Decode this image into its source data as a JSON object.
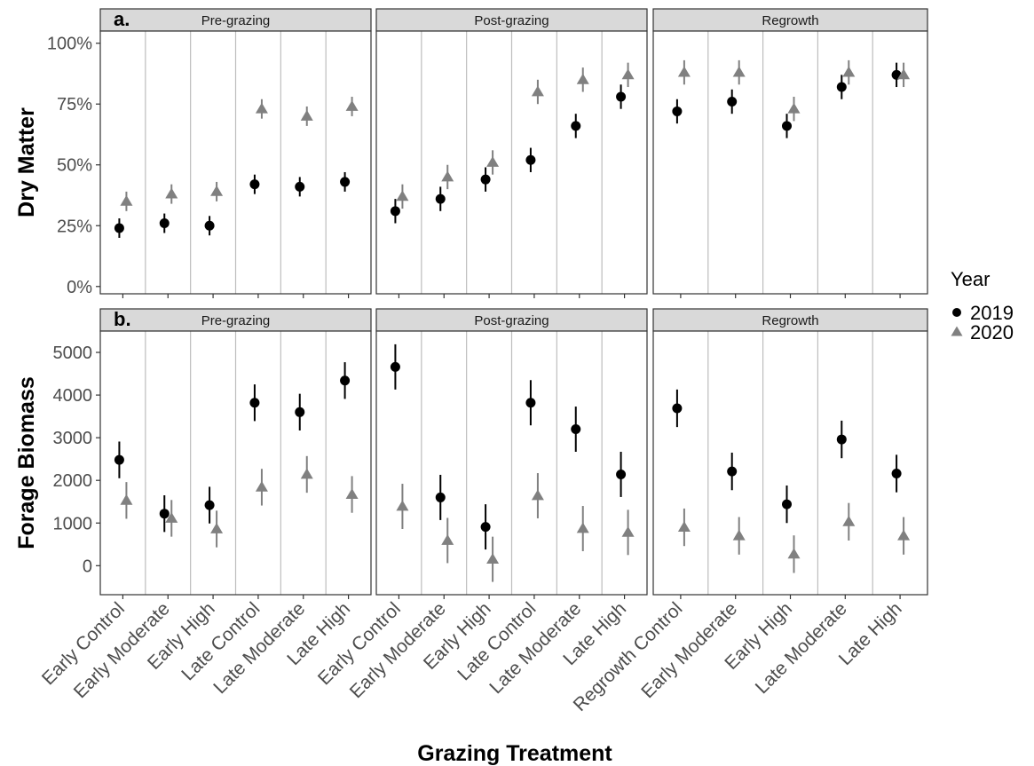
{
  "chart_data": {
    "type": "scatter",
    "x_label": "Grazing Treatment",
    "legend": {
      "title": "Year",
      "position": "right",
      "entries": [
        {
          "label": "2019",
          "color": "#000000",
          "shape": "circle"
        },
        {
          "label": "2020",
          "color": "#808080",
          "shape": "triangle"
        }
      ]
    },
    "panels": [
      {
        "tag": "a.",
        "ylabel": "Dry Matter",
        "ylim": [
          -3,
          105
        ],
        "yticks": [
          0,
          25,
          50,
          75,
          100
        ],
        "ytick_labels": [
          "0%",
          "25%",
          "50%",
          "75%",
          "100%"
        ],
        "facets": [
          {
            "title": "Pre-grazing",
            "categories": [
              "Early Control",
              "Early Moderate",
              "Early High",
              "Late Control",
              "Late Moderate",
              "Late High"
            ],
            "series": [
              {
                "name": "2019",
                "values": [
                  24,
                  26,
                  25,
                  42,
                  41,
                  43
                ],
                "errors": [
                  4,
                  4,
                  4,
                  4,
                  4,
                  4
                ]
              },
              {
                "name": "2020",
                "values": [
                  35,
                  38,
                  39,
                  73,
                  70,
                  74
                ],
                "errors": [
                  4,
                  4,
                  4,
                  4,
                  4,
                  4
                ]
              }
            ]
          },
          {
            "title": "Post-grazing",
            "categories": [
              "Early Control",
              "Early Moderate",
              "Early High",
              "Late Control",
              "Late Moderate",
              "Late High"
            ],
            "series": [
              {
                "name": "2019",
                "values": [
                  31,
                  36,
                  44,
                  52,
                  66,
                  78
                ],
                "errors": [
                  5,
                  5,
                  5,
                  5,
                  5,
                  5
                ]
              },
              {
                "name": "2020",
                "values": [
                  37,
                  45,
                  51,
                  80,
                  85,
                  87
                ],
                "errors": [
                  5,
                  5,
                  5,
                  5,
                  5,
                  5
                ]
              }
            ]
          },
          {
            "title": "Regrowth",
            "categories": [
              "Regrowth Control",
              "Early Moderate",
              "Early High",
              "Late Moderate",
              "Late High"
            ],
            "series": [
              {
                "name": "2019",
                "values": [
                  72,
                  76,
                  66,
                  82,
                  87
                ],
                "errors": [
                  5,
                  5,
                  5,
                  5,
                  5
                ]
              },
              {
                "name": "2020",
                "values": [
                  88,
                  88,
                  73,
                  88,
                  87
                ],
                "errors": [
                  5,
                  5,
                  5,
                  5,
                  5
                ]
              }
            ]
          }
        ]
      },
      {
        "tag": "b.",
        "ylabel": "Forage Biomass",
        "ylim": [
          -680,
          5500
        ],
        "yticks": [
          0,
          1000,
          2000,
          3000,
          4000,
          5000
        ],
        "ytick_labels": [
          "0",
          "1000",
          "2000",
          "3000",
          "4000",
          "5000"
        ],
        "facets": [
          {
            "title": "Pre-grazing",
            "categories": [
              "Early Control",
              "Early Moderate",
              "Early High",
              "Late Control",
              "Late Moderate",
              "Late High"
            ],
            "series": [
              {
                "name": "2019",
                "values": [
                  2480,
                  1220,
                  1420,
                  3820,
                  3600,
                  4340
                ],
                "errors": [
                  430,
                  430,
                  430,
                  430,
                  430,
                  430
                ]
              },
              {
                "name": "2020",
                "values": [
                  1530,
                  1110,
                  860,
                  1840,
                  2140,
                  1670
                ],
                "errors": [
                  430,
                  430,
                  430,
                  430,
                  430,
                  430
                ]
              }
            ]
          },
          {
            "title": "Post-grazing",
            "categories": [
              "Early Control",
              "Early Moderate",
              "Early High",
              "Late Control",
              "Late Moderate",
              "Late High"
            ],
            "series": [
              {
                "name": "2019",
                "values": [
                  4660,
                  1600,
                  910,
                  3820,
                  3200,
                  2140
                ],
                "errors": [
                  530,
                  530,
                  530,
                  530,
                  530,
                  530
                ]
              },
              {
                "name": "2020",
                "values": [
                  1390,
                  590,
                  150,
                  1640,
                  870,
                  780
                ],
                "errors": [
                  530,
                  530,
                  530,
                  530,
                  530,
                  530
                ]
              }
            ]
          },
          {
            "title": "Regrowth",
            "categories": [
              "Regrowth Control",
              "Early Moderate",
              "Early High",
              "Late Moderate",
              "Late High"
            ],
            "series": [
              {
                "name": "2019",
                "values": [
                  3690,
                  2210,
                  1440,
                  2960,
                  2160
                ],
                "errors": [
                  440,
                  440,
                  440,
                  440,
                  440
                ]
              },
              {
                "name": "2020",
                "values": [
                  900,
                  700,
                  270,
                  1030,
                  700
                ],
                "errors": [
                  440,
                  440,
                  440,
                  440,
                  440
                ]
              }
            ]
          }
        ]
      }
    ],
    "colors": {
      "series_2019": "#000000",
      "series_2020": "#808080",
      "strip_fill": "#d9d9d9",
      "grid_line": "#bdbdbd",
      "panel_border": "#333333"
    }
  }
}
